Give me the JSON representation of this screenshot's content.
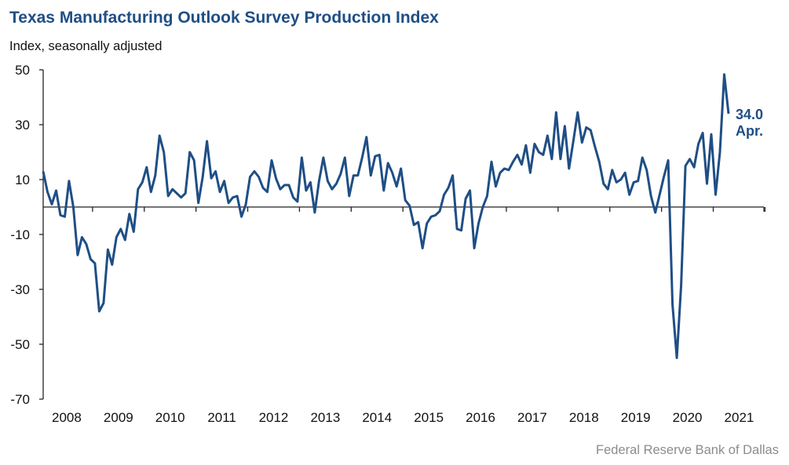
{
  "chart_data": {
    "type": "line",
    "title": "Texas Manufacturing Outlook Survey Production Index",
    "ylabel": "Index, seasonally adjusted",
    "xlabel": "",
    "source": "Federal Reserve Bank of Dallas",
    "ylim": [
      -70,
      50
    ],
    "yticks": [
      50,
      30,
      10,
      -10,
      -30,
      -50,
      -70
    ],
    "xticks": [
      "2008",
      "2009",
      "2010",
      "2011",
      "2012",
      "2013",
      "2014",
      "2015",
      "2016",
      "2017",
      "2018",
      "2019",
      "2020",
      "2021"
    ],
    "start": "2008-01",
    "frequency": "monthly",
    "grid": false,
    "color": "#1f4e85",
    "annotation": {
      "value": "34.0",
      "label": "Apr."
    },
    "series": [
      {
        "name": "Production Index",
        "values": [
          13,
          5.5,
          1,
          6,
          -3,
          -3.5,
          9.5,
          0,
          -17.5,
          -11,
          -13.5,
          -19,
          -20.5,
          -38,
          -35,
          -15.5,
          -21,
          -11,
          -8,
          -12,
          -2.5,
          -9,
          6.5,
          9,
          14.5,
          5.5,
          11.5,
          26,
          20,
          4,
          6.5,
          5,
          3.5,
          5,
          20,
          17,
          1.5,
          11,
          24,
          10.5,
          13,
          5.5,
          9.5,
          1.5,
          3.5,
          4,
          -3.5,
          1,
          11,
          13,
          11,
          7,
          5.5,
          17,
          10.5,
          6.5,
          8,
          8,
          3.5,
          2,
          18,
          6,
          9,
          -2,
          9.5,
          18,
          9.5,
          6.5,
          8.5,
          12,
          18,
          4,
          11.5,
          11.5,
          18,
          25.5,
          11.5,
          18.5,
          19,
          6,
          16,
          12.5,
          7.5,
          14,
          2.5,
          0.5,
          -6.5,
          -5.5,
          -15,
          -6,
          -3.5,
          -3,
          -1.5,
          4.5,
          7,
          11.5,
          -8,
          -8.5,
          3,
          6,
          -15,
          -6,
          0,
          4,
          16.5,
          7.5,
          12.5,
          14,
          13.5,
          16.5,
          19,
          15.5,
          22.5,
          12.5,
          23,
          20,
          19,
          26,
          17.5,
          34.5,
          17.5,
          29.5,
          14,
          24,
          34.5,
          23.5,
          29,
          28,
          22,
          16.5,
          8.5,
          6.5,
          13.5,
          9,
          10,
          12.5,
          4.5,
          9,
          9.5,
          18,
          13.5,
          4,
          -2,
          4.5,
          11,
          17,
          -35.5,
          -55,
          -28.5,
          15,
          17.5,
          14.5,
          23,
          27,
          8.5,
          26.5,
          4.5,
          20,
          48.3,
          34
        ]
      }
    ]
  }
}
